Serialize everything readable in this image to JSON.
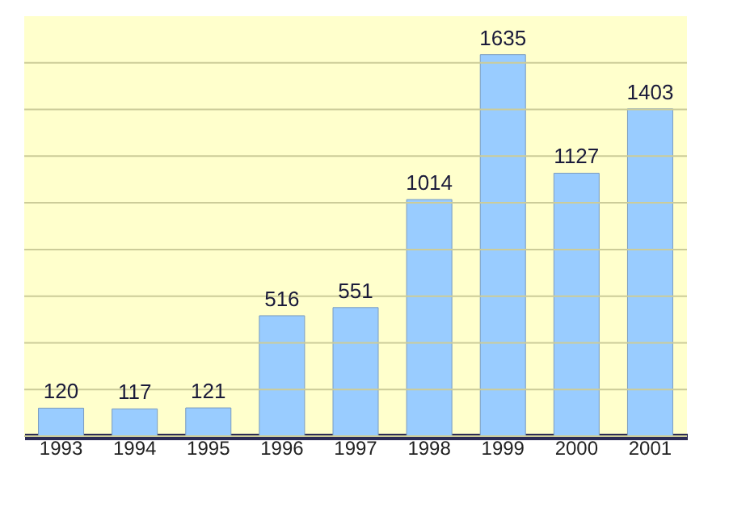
{
  "chart_data": {
    "type": "bar",
    "categories": [
      "1993",
      "1994",
      "1995",
      "1996",
      "1997",
      "1998",
      "1999",
      "2000",
      "2001"
    ],
    "values": [
      120,
      117,
      121,
      516,
      551,
      1014,
      1635,
      1127,
      1403
    ],
    "color": "#99ccff",
    "data_labels": true,
    "grid": "y",
    "tick_labels": "x",
    "ylim": [
      0,
      1800
    ],
    "yticks": [
      {
        "value": 0,
        "label": null
      },
      {
        "value": 200,
        "label": null
      },
      {
        "value": 400,
        "label": null
      },
      {
        "value": 600,
        "label": null
      },
      {
        "value": 800,
        "label": null
      },
      {
        "value": 1000,
        "label": null
      },
      {
        "value": 1200,
        "label": null
      },
      {
        "value": 1400,
        "label": null
      },
      {
        "value": 1600,
        "label": null
      }
    ]
  }
}
